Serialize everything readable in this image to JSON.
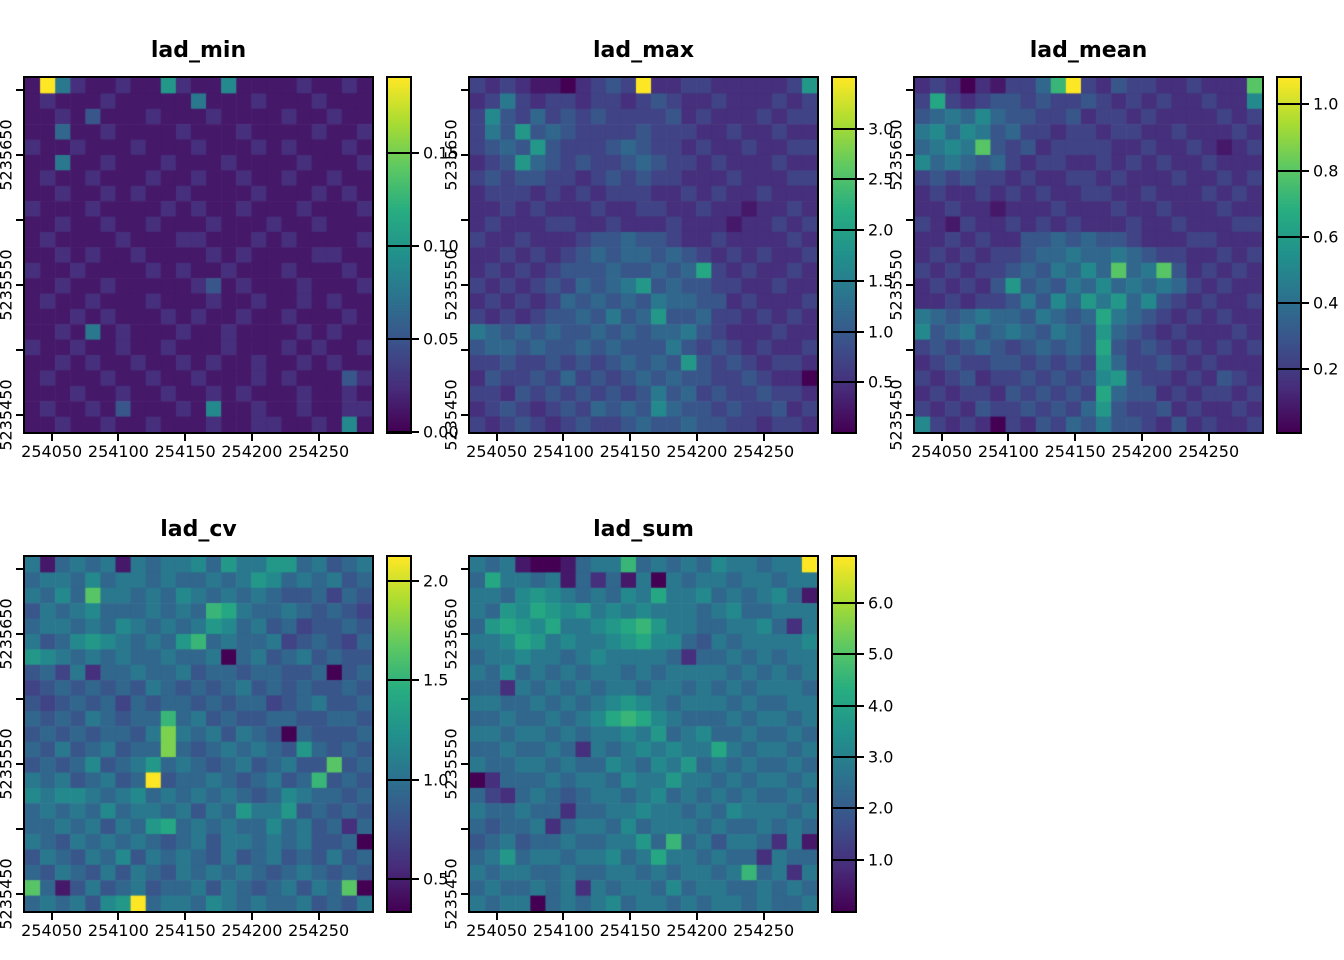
{
  "colors": {
    "background": "#ffffff",
    "frame": "#000000",
    "text": "#000000",
    "viridis": [
      [
        0.0,
        "#440154"
      ],
      [
        0.125,
        "#472d7b"
      ],
      [
        0.25,
        "#3b528b"
      ],
      [
        0.375,
        "#2c728e"
      ],
      [
        0.5,
        "#21918c"
      ],
      [
        0.625,
        "#27ad81"
      ],
      [
        0.75,
        "#5ec962"
      ],
      [
        0.875,
        "#aadc32"
      ],
      [
        1.0,
        "#fde725"
      ]
    ]
  },
  "chart_data": {
    "type": "heatmap",
    "colormap": "viridis",
    "axes": {
      "x": {
        "min": 254030,
        "max": 254290,
        "ticks": [
          {
            "v": 254050,
            "label": "254050"
          },
          {
            "v": 254100,
            "label": "254100"
          },
          {
            "v": 254150,
            "label": "254150"
          },
          {
            "v": 254200,
            "label": "254200"
          },
          {
            "v": 254250,
            "label": "254250"
          }
        ]
      },
      "y": {
        "min": 5235437,
        "max": 5235709,
        "ticks": [
          {
            "v": 5235700,
            "label": ""
          },
          {
            "v": 5235650,
            "label": "5235650"
          },
          {
            "v": 5235600,
            "label": ""
          },
          {
            "v": 5235550,
            "label": "5235550"
          },
          {
            "v": 5235500,
            "label": ""
          },
          {
            "v": 5235450,
            "label": "5235450"
          }
        ]
      }
    },
    "panels": [
      {
        "title": "lad_min",
        "value_min": 0.0,
        "value_max": 0.19,
        "legend_ticks": [
          {
            "v": 0.0,
            "label": "0.00"
          },
          {
            "v": 0.05,
            "label": "0.05"
          },
          {
            "v": 0.1,
            "label": "0.10"
          },
          {
            "v": 0.15,
            "label": "0.15"
          }
        ],
        "grid_rows": [
          "1f621121182117111121121",
          "12111211111611121112111",
          "11214111211121111211211",
          "11511211112111211112112",
          "21121112111211121211121",
          "11611211121112111121112",
          "12112111211211211211211",
          "11211212112111121112121",
          "21112111121211211121112",
          "11211211211121112112111",
          "12111121112211121211112",
          "11212112111121211112211",
          "21121111212112111211121",
          "11211211111241211121112",
          "12112111211121121121211",
          "11121211121211211211121",
          "11216121112112111121211",
          "21121121121112111212112",
          "11212112112121121121211",
          "12111211211211121211142",
          "11121121121121211121121",
          "12112141112171121121122",
          "11211211211121122112171"
        ]
      },
      {
        "title": "lad_max",
        "value_min": 0.01,
        "value_max": 3.5,
        "legend_ticks": [
          {
            "v": 0.5,
            "label": "0.5"
          },
          {
            "v": 1.0,
            "label": "1.0"
          },
          {
            "v": 1.5,
            "label": "1.5"
          },
          {
            "v": 2.0,
            "label": "2.0"
          },
          {
            "v": 2.5,
            "label": "2.5"
          },
          {
            "v": 3.0,
            "label": "3.0"
          }
        ],
        "grid_rows": [
          "32321102343f22332222238",
          "23632332332343223222323",
          "37435343433334232223233",
          "36484543333433322322322",
          "34548433345433232232233",
          "23485434334543323222322",
          "34344332343433222322233",
          "23332323233322323223222",
          "22323222322332232212232",
          "23222332232223222122323",
          "32232223445443223222232",
          "22323234545545432323223",
          "23232344454454593232232",
          "32323435456845443322322",
          "23232354545465544232223",
          "32323445464584453323232",
          "65454544545455643222322",
          "45545445454446434323223",
          "33433434345454843432332",
          "24334353434545443343220",
          "33243434343464534334332",
          "23432343545475443433423",
          "32343234334544544332332"
        ]
      },
      {
        "title": "lad_mean",
        "value_min": 0.01,
        "value_max": 1.08,
        "legend_ticks": [
          {
            "v": 0.2,
            "label": "0.2"
          },
          {
            "v": 0.4,
            "label": "0.4"
          },
          {
            "v": 0.6,
            "label": "0.6"
          },
          {
            "v": 0.8,
            "label": "0.8"
          },
          {
            "v": 1.0,
            "label": "1.0"
          }
        ],
        "grid_rows": [
          "232021335af32433223222b",
          "39323443433432323223227",
          "45657544334233232222323",
          "67576453323323322322232",
          "5676b434233332232232123",
          "75654532332232323223222",
          "34343323223323222322323",
          "23223232322332232223232",
          "22322122232223223222322",
          "32132232323222322322233",
          "22323224454544322233222",
          "23232334556556543322323",
          "3232334546575b56b423232",
          "23232484546575656532322",
          "22323346475868574323223",
          "65456554654596543232322",
          "74564565465485432322232",
          "34345434545494343232323",
          "23433443434385334323222",
          "32342334343478433232432",
          "23233243434395442323323",
          "32324334343584334232232",
          "73232032435464432423223"
        ]
      },
      {
        "title": "lad_cv",
        "value_min": 0.34,
        "value_max": 2.12,
        "legend_ticks": [
          {
            "v": 0.5,
            "label": "0.5"
          },
          {
            "v": 1.0,
            "label": "1.0"
          },
          {
            "v": 1.5,
            "label": "1.5"
          },
          {
            "v": 2.0,
            "label": "2.0"
          }
        ],
        "grid_rows": [
          "61565616566758668856456",
          "56657566565565687565645",
          "6575b665657656565445354",
          "465675556565a9655654543",
          "56656576565687564534454",
          "64578765658a56556345435",
          "87656565565560564564544",
          "45362556556455455445045",
          "34545454654545645454454",
          "43454535455454553456445",
          "545465455a5645445544554",
          "454545546c6564654054445",
          "546456455c5456565485454",
          "45457456856545645644b45",
          "65645645f4556545645a454",
          "76776567565656545765545",
          "56565756656465866845454",
          "55656465895656557564525",
          "65465656545646656564450",
          "46546574656546456454645",
          "54654646546565654565454",
          "b51464564556465456465b0",
          "5656478f566576565564546"
        ]
      },
      {
        "title": "lad_sum",
        "value_min": 0.0,
        "value_max": 6.9,
        "legend_ticks": [
          {
            "v": 1.0,
            "label": "1.0"
          },
          {
            "v": 2.0,
            "label": "2.0"
          },
          {
            "v": 3.0,
            "label": "3.0"
          },
          {
            "v": 4.0,
            "label": "4.0"
          },
          {
            "v": 5.0,
            "label": "5.0"
          },
          {
            "v": 6.0,
            "label": "6.0"
          }
        ],
        "grid_rows": [
          "6561001566a56565766566f",
          "59665615251606566566566",
          "66578765657696675656751",
          "65879878676766656755666",
          "58987966789a86655667526",
          "66798676678977546566667",
          "56676656766665255656566",
          "65756565665656666565656",
          "55265656566566565656665",
          "66556565678765666565566",
          "5565565679a976555656656",
          "66566565667685675565565",
          "55655652656767669656656",
          "65566565576576856565565",
          "02555656657668665656656",
          "53256545665675656565565",
          "65565525566766565766656",
          "54556256657566656556565",
          "4564556556685a564665261",
          "56856656675696656552655",
          "656655655665656656a5626",
          "56556562656657566556565",
          "65660565675665656656556"
        ]
      }
    ]
  }
}
